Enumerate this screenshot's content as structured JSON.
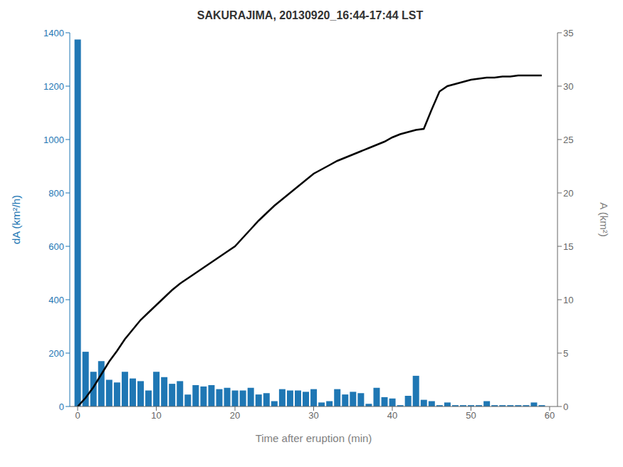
{
  "chart_data": {
    "type": "bar",
    "title": "SAKURAJIMA, 20130920_16:44-17:44 LST",
    "xlabel": "Time after eruption (min)",
    "ylabel": "dA (km²/h)",
    "y2label": "A (km²)",
    "x": [
      0,
      1,
      2,
      3,
      4,
      5,
      6,
      7,
      8,
      9,
      10,
      11,
      12,
      13,
      14,
      15,
      16,
      17,
      18,
      19,
      20,
      21,
      22,
      23,
      24,
      25,
      26,
      27,
      28,
      29,
      30,
      31,
      32,
      33,
      34,
      35,
      36,
      37,
      38,
      39,
      40,
      41,
      42,
      43,
      44,
      45,
      46,
      47,
      48,
      49,
      50,
      51,
      52,
      53,
      54,
      55,
      56,
      57,
      58,
      59
    ],
    "series": [
      {
        "type": "bar",
        "color": "#1f77b4",
        "values": [
          1375,
          205,
          130,
          170,
          100,
          90,
          130,
          105,
          95,
          60,
          130,
          110,
          85,
          95,
          45,
          80,
          75,
          80,
          65,
          70,
          60,
          60,
          70,
          45,
          50,
          20,
          65,
          60,
          60,
          55,
          65,
          15,
          20,
          65,
          45,
          55,
          50,
          10,
          70,
          35,
          30,
          5,
          40,
          115,
          25,
          20,
          5,
          15,
          5,
          5,
          5,
          5,
          20,
          5,
          5,
          5,
          5,
          5,
          15,
          5
        ]
      },
      {
        "type": "line",
        "axis": "y2",
        "color": "#000000",
        "values": [
          0.0,
          0.8,
          1.8,
          3.0,
          4.2,
          5.2,
          6.3,
          7.2,
          8.1,
          8.8,
          9.5,
          10.2,
          10.9,
          11.5,
          12.0,
          12.5,
          13.0,
          13.5,
          14.0,
          14.5,
          15.0,
          15.8,
          16.6,
          17.4,
          18.1,
          18.8,
          19.4,
          20.0,
          20.6,
          21.2,
          21.8,
          22.2,
          22.6,
          23.0,
          23.3,
          23.6,
          23.9,
          24.2,
          24.5,
          24.8,
          25.2,
          25.5,
          25.7,
          25.9,
          26.0,
          27.8,
          29.5,
          30.0,
          30.2,
          30.4,
          30.6,
          30.7,
          30.8,
          30.8,
          30.9,
          30.9,
          31.0,
          31.0,
          31.0,
          31.0
        ]
      }
    ],
    "xlim": [
      -1,
      61
    ],
    "xticks": [
      0,
      10,
      20,
      30,
      40,
      50,
      60
    ],
    "ylim": [
      0,
      1400
    ],
    "yticks": [
      0,
      200,
      400,
      600,
      800,
      1000,
      1200,
      1400
    ],
    "y2lim": [
      0,
      35
    ],
    "y2ticks": [
      0,
      5,
      10,
      15,
      20,
      25,
      30,
      35
    ],
    "grid": false
  }
}
